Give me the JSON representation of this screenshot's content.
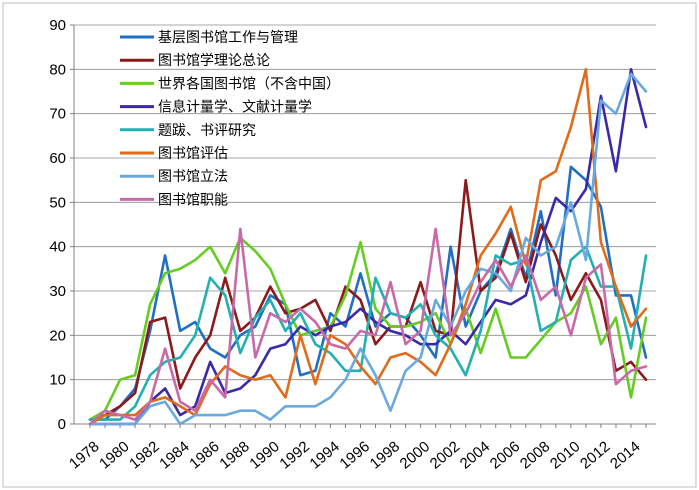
{
  "chart_data": {
    "type": "line",
    "title": "",
    "xlabel": "",
    "ylabel": "",
    "ylim": [
      0,
      90
    ],
    "yticks": [
      0,
      10,
      20,
      30,
      40,
      50,
      60,
      70,
      80,
      90
    ],
    "xticks": [
      "1978",
      "1980",
      "1982",
      "1984",
      "1986",
      "1988",
      "1990",
      "1992",
      "1994",
      "1996",
      "1998",
      "2000",
      "2002",
      "2004",
      "2006",
      "2008",
      "2010",
      "2012",
      "2014"
    ],
    "grid": "horizontal",
    "legend_position": "top-left",
    "x": [
      1978,
      1979,
      1980,
      1981,
      1982,
      1983,
      1984,
      1985,
      1986,
      1987,
      1988,
      1989,
      1990,
      1991,
      1992,
      1993,
      1994,
      1995,
      1996,
      1997,
      1998,
      1999,
      2000,
      2001,
      2002,
      2003,
      2004,
      2005,
      2006,
      2007,
      2008,
      2009,
      2010,
      2011,
      2012,
      2013,
      2014,
      2015
    ],
    "series": [
      {
        "name": "基层图书馆工作与管理",
        "color": "#1f6fc4",
        "values": [
          1,
          1,
          4,
          8,
          21,
          38,
          21,
          23,
          17,
          15,
          20,
          22,
          29,
          27,
          11,
          12,
          25,
          22,
          34,
          22,
          25,
          24,
          20,
          15,
          40,
          22,
          30,
          34,
          44,
          33,
          48,
          29,
          58,
          55,
          49,
          29,
          29,
          15
        ]
      },
      {
        "name": "图书馆学理论总论",
        "color": "#8b1a1a",
        "values": [
          1,
          2,
          4,
          7,
          23,
          24,
          8,
          15,
          20,
          33,
          21,
          24,
          31,
          25,
          26,
          28,
          21,
          31,
          28,
          18,
          22,
          22,
          32,
          21,
          20,
          55,
          30,
          33,
          43,
          32,
          45,
          38,
          28,
          34,
          28,
          12,
          14,
          10
        ]
      },
      {
        "name": "世界各国图书馆（不含中国）",
        "color": "#66cc22",
        "values": [
          1,
          3,
          10,
          11,
          27,
          34,
          35,
          37,
          40,
          34,
          42,
          39,
          35,
          27,
          20,
          21,
          22,
          29,
          41,
          26,
          22,
          22,
          23,
          25,
          18,
          26,
          16,
          26,
          15,
          15,
          19,
          23,
          25,
          31,
          18,
          24,
          6,
          24
        ]
      },
      {
        "name": "信息计量学、文献计量学",
        "color": "#3a2aa8",
        "values": [
          0,
          0,
          0,
          0,
          5,
          8,
          2,
          4,
          14,
          7,
          8,
          11,
          17,
          18,
          22,
          20,
          22,
          23,
          26,
          23,
          21,
          20,
          18,
          18,
          21,
          18,
          23,
          28,
          27,
          29,
          41,
          51,
          48,
          53,
          74,
          57,
          80,
          67
        ]
      },
      {
        "name": "题跋、书评研究",
        "color": "#22b0b0",
        "values": [
          1,
          1,
          1,
          4,
          11,
          14,
          15,
          20,
          33,
          29,
          16,
          24,
          28,
          21,
          25,
          18,
          16,
          12,
          12,
          33,
          25,
          24,
          27,
          20,
          17,
          11,
          21,
          38,
          36,
          37,
          21,
          23,
          37,
          40,
          31,
          31,
          17,
          38
        ]
      },
      {
        "name": "图书馆评估",
        "color": "#e06b1a",
        "values": [
          0,
          2,
          2,
          2,
          5,
          6,
          4,
          2,
          9,
          13,
          11,
          10,
          11,
          6,
          20,
          9,
          20,
          18,
          13,
          9,
          15,
          16,
          14,
          11,
          18,
          27,
          38,
          43,
          49,
          36,
          55,
          57,
          67,
          80,
          41,
          31,
          22,
          26
        ]
      },
      {
        "name": "图书馆立法",
        "color": "#6aa8e0",
        "values": [
          0,
          0,
          0,
          0,
          4,
          5,
          0,
          2,
          2,
          2,
          3,
          3,
          1,
          4,
          4,
          4,
          6,
          10,
          17,
          11,
          3,
          12,
          15,
          28,
          22,
          30,
          35,
          34,
          30,
          42,
          38,
          40,
          50,
          37,
          73,
          70,
          79,
          75
        ]
      },
      {
        "name": "图书馆职能",
        "color": "#c86aa8",
        "values": [
          0,
          3,
          2,
          1,
          5,
          17,
          5,
          3,
          10,
          6,
          44,
          15,
          25,
          23,
          26,
          23,
          18,
          17,
          21,
          20,
          32,
          18,
          21,
          44,
          20,
          25,
          32,
          37,
          31,
          38,
          28,
          31,
          20,
          33,
          36,
          9,
          12,
          13
        ]
      }
    ]
  }
}
